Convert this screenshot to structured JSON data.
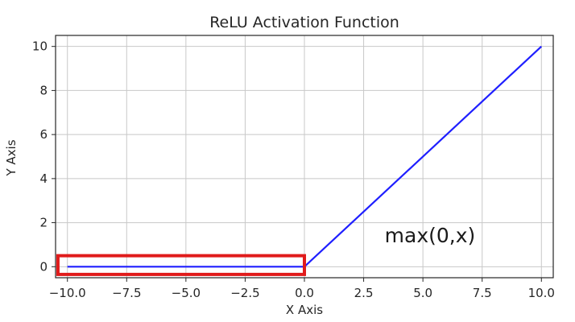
{
  "chart_data": {
    "type": "line",
    "title": "ReLU Activation Function",
    "xlabel": "X Axis",
    "ylabel": "Y Axis",
    "xlim": [
      -10.5,
      10.5
    ],
    "ylim": [
      -0.5,
      10.5
    ],
    "xticks": [
      -10.0,
      -7.5,
      -5.0,
      -2.5,
      0.0,
      2.5,
      5.0,
      7.5,
      10.0
    ],
    "xtick_labels": [
      "−10.0",
      "−7.5",
      "−5.0",
      "−2.5",
      "0.0",
      "2.5",
      "5.0",
      "7.5",
      "10.0"
    ],
    "yticks": [
      0,
      2,
      4,
      6,
      8,
      10
    ],
    "ytick_labels": [
      "0",
      "2",
      "4",
      "6",
      "8",
      "10"
    ],
    "grid": true,
    "series": [
      {
        "x": [
          -10,
          0,
          10
        ],
        "y": [
          0,
          0,
          10
        ],
        "color": "#1f1fff"
      }
    ],
    "annotation": {
      "text": "max(0,x)",
      "x": 5.3,
      "y": 1.1
    },
    "highlight_box": {
      "x_from": -10.4,
      "x_to": 0.0,
      "y_from": -0.35,
      "y_to": 0.5,
      "color": "#e01b1b"
    }
  }
}
